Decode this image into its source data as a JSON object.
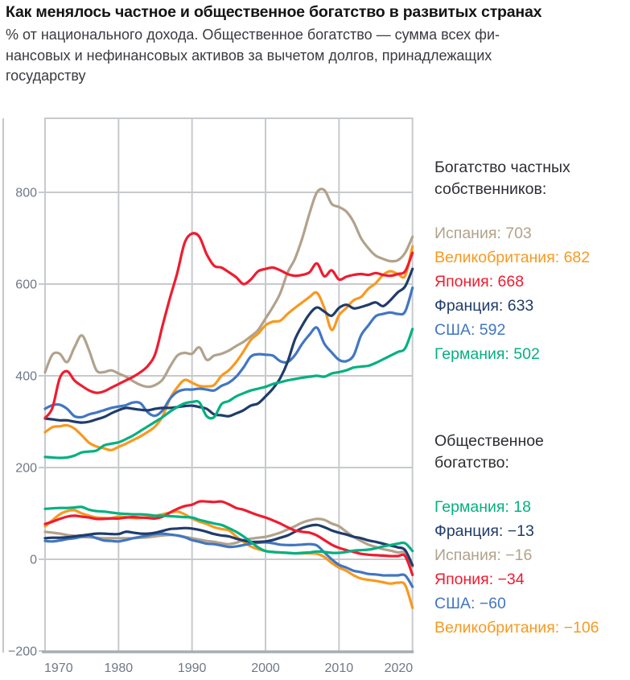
{
  "title": "Как менялось частное и общественное богатство в развитых странах",
  "subtitle_lines": {
    "l1": "% от национального дохода. Общественное богатство — сумма всех фи-",
    "l2": "нансовых и нефинансовых активов за вычетом долгов, принадлежащих",
    "l3": "государству"
  },
  "palette": {
    "spain": "#b2a28c",
    "uk": "#f8991f",
    "japan": "#ef1c30",
    "france": "#203c6b",
    "usa": "#4176c2",
    "germany": "#05b081",
    "gridline": "#c7cacd",
    "axis_bottom": "#a9adb2",
    "axis_spine": "#c3c6ca",
    "tick_text": "#6f7888"
  },
  "legend_private": {
    "header_line1": "Богатство частных",
    "header_line2": "собственников:",
    "items": [
      {
        "id": "spain",
        "label": "Испания",
        "value": "703"
      },
      {
        "id": "uk",
        "label": "Великобритания",
        "value": "682"
      },
      {
        "id": "japan",
        "label": "Япония",
        "value": "668"
      },
      {
        "id": "france",
        "label": "Франция",
        "value": "633"
      },
      {
        "id": "usa",
        "label": "США",
        "value": "592"
      },
      {
        "id": "germany",
        "label": "Германия",
        "value": "502"
      }
    ]
  },
  "legend_public": {
    "header_line1": "Общественное",
    "header_line2": "богатство:",
    "items": [
      {
        "id": "germany",
        "label": "Германия",
        "value": "18"
      },
      {
        "id": "france",
        "label": "Франция",
        "value": "−13"
      },
      {
        "id": "spain",
        "label": "Испания",
        "value": "−16"
      },
      {
        "id": "japan",
        "label": "Япония",
        "value": "−34"
      },
      {
        "id": "usa",
        "label": "США",
        "value": "−60"
      },
      {
        "id": "uk",
        "label": "Великобритания",
        "value": "−106"
      }
    ]
  },
  "chart_data": {
    "type": "line",
    "x_start_year": 1970,
    "x_end_year": 2020,
    "ylim": [
      -200,
      965
    ],
    "grid": true,
    "x_gridline_years": [
      1980,
      1990,
      2000,
      2010
    ],
    "y_gridline_values": [
      800,
      600,
      400,
      200,
      0,
      -200
    ],
    "x_tick_labels": [
      "1970",
      "1980",
      "1990",
      "2000",
      "2010",
      "2020"
    ],
    "y_tick_labels": [
      "800",
      "600",
      "400",
      "200",
      "0",
      "−200"
    ],
    "ylabel": "% от национального дохода",
    "legend_position": "right",
    "series": [
      {
        "id": "spain",
        "group": "private",
        "label": "Испания",
        "values": [
          408,
          446,
          448,
          430,
          462,
          488,
          455,
          412,
          408,
          412,
          405,
          398,
          388,
          380,
          376,
          380,
          392,
          420,
          444,
          450,
          448,
          462,
          435,
          444,
          448,
          455,
          465,
          474,
          486,
          500,
          525,
          550,
          580,
          625,
          655,
          700,
          755,
          800,
          805,
          775,
          768,
          758,
          735,
          700,
          678,
          662,
          655,
          650,
          652,
          668,
          703
        ]
      },
      {
        "id": "uk",
        "group": "private",
        "label": "Великобритания",
        "values": [
          277,
          288,
          290,
          292,
          285,
          270,
          254,
          246,
          242,
          238,
          245,
          252,
          260,
          268,
          278,
          290,
          312,
          350,
          375,
          391,
          385,
          378,
          377,
          380,
          400,
          412,
          430,
          453,
          478,
          492,
          510,
          518,
          520,
          535,
          548,
          560,
          572,
          581,
          548,
          500,
          532,
          548,
          565,
          572,
          590,
          602,
          620,
          628,
          622,
          618,
          682
        ]
      },
      {
        "id": "usa",
        "group": "private",
        "label": "США",
        "values": [
          328,
          336,
          337,
          328,
          312,
          310,
          316,
          320,
          325,
          330,
          333,
          336,
          342,
          340,
          320,
          313,
          325,
          350,
          365,
          370,
          370,
          372,
          370,
          368,
          378,
          385,
          398,
          418,
          442,
          447,
          446,
          444,
          432,
          430,
          445,
          470,
          490,
          505,
          470,
          451,
          435,
          432,
          445,
          488,
          510,
          530,
          535,
          538,
          535,
          540,
          592
        ]
      },
      {
        "id": "france",
        "group": "private",
        "label": "Франция",
        "values": [
          307,
          305,
          303,
          303,
          300,
          298,
          300,
          305,
          310,
          318,
          325,
          330,
          328,
          326,
          325,
          328,
          330,
          330,
          332,
          334,
          335,
          332,
          328,
          316,
          314,
          312,
          318,
          325,
          335,
          340,
          355,
          372,
          395,
          430,
          479,
          510,
          535,
          549,
          540,
          531,
          548,
          555,
          547,
          550,
          555,
          560,
          552,
          565,
          582,
          595,
          633
        ]
      },
      {
        "id": "japan",
        "group": "private",
        "label": "Япония",
        "values": [
          308,
          330,
          395,
          410,
          390,
          378,
          368,
          363,
          366,
          374,
          382,
          390,
          398,
          408,
          422,
          448,
          510,
          570,
          625,
          690,
          710,
          703,
          665,
          640,
          636,
          626,
          615,
          600,
          610,
          628,
          633,
          636,
          630,
          622,
          618,
          620,
          626,
          645,
          617,
          630,
          610,
          616,
          620,
          622,
          620,
          624,
          620,
          618,
          622,
          628,
          668
        ]
      },
      {
        "id": "germany",
        "group": "private",
        "label": "Германия",
        "values": [
          223,
          222,
          221,
          222,
          226,
          233,
          235,
          237,
          248,
          252,
          255,
          262,
          270,
          280,
          290,
          300,
          310,
          322,
          332,
          340,
          343,
          342,
          312,
          310,
          338,
          345,
          355,
          362,
          368,
          372,
          376,
          382,
          386,
          390,
          393,
          396,
          398,
          400,
          398,
          405,
          408,
          412,
          418,
          420,
          422,
          428,
          436,
          444,
          452,
          460,
          502
        ]
      },
      {
        "id": "spain",
        "group": "public",
        "label": "Испания",
        "values": [
          60,
          58,
          56,
          53,
          51,
          49,
          48,
          47,
          46,
          46,
          46,
          46,
          46,
          47,
          48,
          50,
          52,
          53,
          52,
          49,
          46,
          43,
          40,
          38,
          35,
          33,
          36,
          42,
          45,
          47,
          49,
          53,
          58,
          65,
          72,
          80,
          85,
          88,
          86,
          78,
          72,
          60,
          49,
          40,
          32,
          27,
          22,
          19,
          15,
          14,
          -16
        ]
      },
      {
        "id": "uk",
        "group": "public",
        "label": "Великобритания",
        "values": [
          72,
          85,
          98,
          105,
          107,
          100,
          95,
          91,
          90,
          90,
          93,
          92,
          90,
          90,
          92,
          95,
          98,
          102,
          104,
          98,
          89,
          82,
          77,
          70,
          66,
          63,
          50,
          38,
          28,
          22,
          18,
          16,
          15,
          14,
          13,
          13,
          13,
          12,
          5,
          -8,
          -18,
          -25,
          -35,
          -42,
          -45,
          -47,
          -50,
          -53,
          -51,
          -56,
          -106
        ]
      },
      {
        "id": "usa",
        "group": "public",
        "label": "США",
        "values": [
          40,
          39,
          41,
          44,
          46,
          49,
          51,
          46,
          41,
          40,
          39,
          42,
          46,
          49,
          52,
          55,
          56,
          54,
          52,
          48,
          42,
          38,
          34,
          33,
          30,
          27,
          28,
          31,
          34,
          36,
          37,
          35,
          32,
          31,
          31,
          32,
          33,
          30,
          15,
          0,
          -12,
          -18,
          -25,
          -28,
          -32,
          -33,
          -35,
          -35,
          -35,
          -35,
          -60
        ]
      },
      {
        "id": "france",
        "group": "public",
        "label": "Франция",
        "values": [
          46,
          47,
          47,
          48,
          50,
          52,
          54,
          56,
          56,
          55,
          55,
          60,
          58,
          56,
          56,
          58,
          62,
          66,
          67,
          68,
          67,
          64,
          60,
          55,
          52,
          50,
          45,
          41,
          38,
          38,
          39,
          42,
          47,
          52,
          60,
          68,
          73,
          75,
          70,
          63,
          58,
          54,
          49,
          46,
          41,
          38,
          34,
          30,
          26,
          20,
          -13
        ]
      },
      {
        "id": "japan",
        "group": "public",
        "label": "Япония",
        "values": [
          77,
          82,
          88,
          93,
          95,
          93,
          91,
          88,
          88,
          89,
          89,
          91,
          92,
          91,
          90,
          89,
          93,
          102,
          110,
          116,
          119,
          126,
          126,
          125,
          126,
          120,
          112,
          108,
          102,
          96,
          91,
          85,
          78,
          70,
          63,
          60,
          58,
          52,
          42,
          32,
          25,
          20,
          16,
          12,
          10,
          9,
          8,
          7,
          7,
          7,
          -34
        ]
      },
      {
        "id": "germany",
        "group": "public",
        "label": "Германия",
        "values": [
          110,
          111,
          112,
          112,
          113,
          114,
          108,
          105,
          104,
          102,
          100,
          99,
          98,
          98,
          97,
          95,
          95,
          94,
          93,
          92,
          91,
          86,
          82,
          78,
          75,
          68,
          60,
          50,
          38,
          26,
          18,
          16,
          15,
          14,
          13,
          14,
          15,
          17,
          16,
          14,
          14,
          16,
          19,
          20,
          21,
          24,
          28,
          31,
          34,
          35,
          18
        ]
      }
    ]
  }
}
